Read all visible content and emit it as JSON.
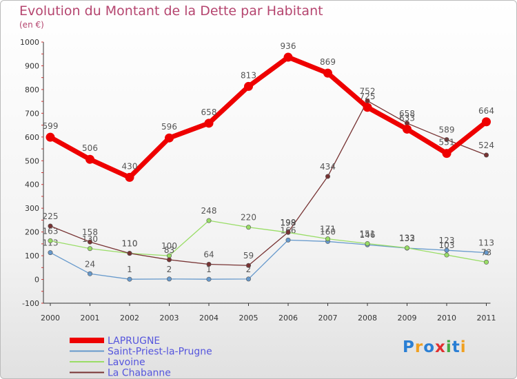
{
  "chart_data": {
    "type": "line",
    "title": "Evolution du Montant de la Dette par Habitant",
    "subtitle": "(en €)",
    "x": [
      "2000",
      "2001",
      "2002",
      "2003",
      "2004",
      "2005",
      "2006",
      "2007",
      "2008",
      "2009",
      "2010",
      "2011"
    ],
    "ylim": [
      -100,
      1000
    ],
    "yticks": [
      -100,
      0,
      100,
      200,
      300,
      400,
      500,
      600,
      700,
      800,
      900,
      1000
    ],
    "grid": false,
    "legend_position": "bottom-left",
    "series": [
      {
        "name": "LAPRUGNE",
        "color": "#ee0000",
        "values": [
          599,
          506,
          430,
          596,
          658,
          813,
          936,
          869,
          725,
          633,
          531,
          664
        ]
      },
      {
        "name": "Saint-Priest-la-Prugne",
        "color": "#6699cc",
        "values": [
          113,
          24,
          1,
          2,
          1,
          2,
          166,
          160,
          146,
          132,
          123,
          113
        ]
      },
      {
        "name": "Lavoine",
        "color": "#99dd66",
        "values": [
          163,
          130,
          110,
          100,
          248,
          220,
          198,
          171,
          151,
          133,
          103,
          73
        ]
      },
      {
        "name": "La Chabanne",
        "color": "#773333",
        "values": [
          225,
          158,
          110,
          83,
          64,
          59,
          199,
          434,
          752,
          658,
          589,
          524
        ]
      }
    ]
  },
  "logo": {
    "text": "Proxiti",
    "letters": [
      "P",
      "r",
      "o",
      "x",
      "i",
      "t",
      "i"
    ],
    "colors": [
      "#2a7fd4",
      "#f0a020",
      "#2a7fd4",
      "#e03030",
      "#44aa44",
      "#2a7fd4",
      "#f0a020"
    ]
  }
}
